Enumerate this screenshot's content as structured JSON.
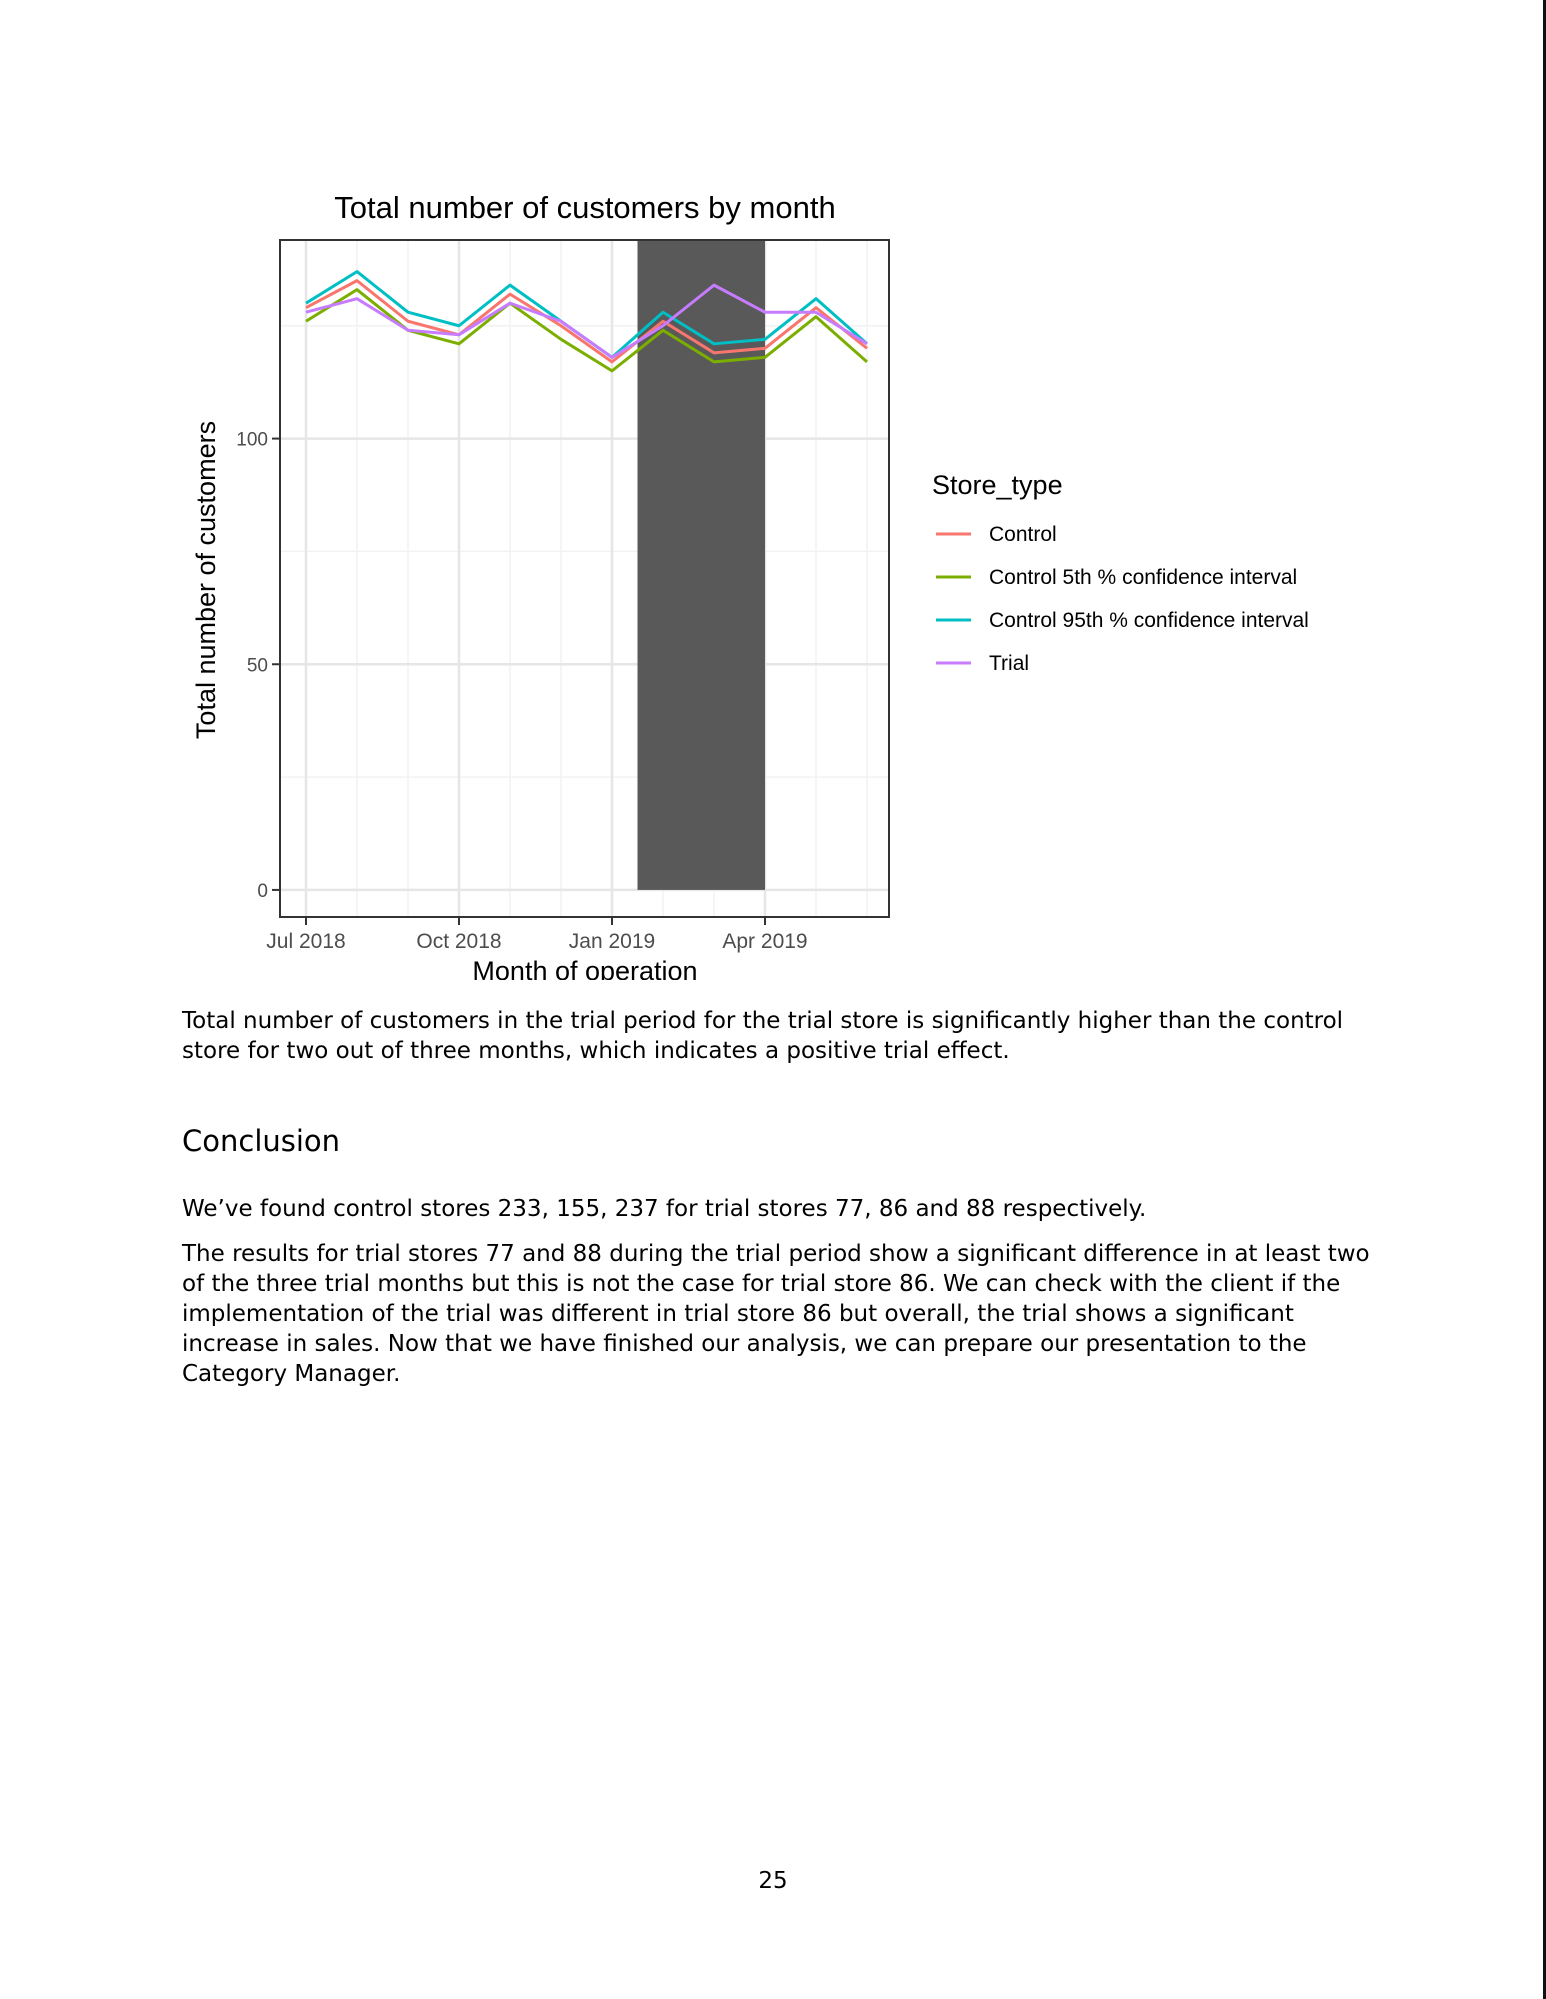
{
  "chart_data": {
    "type": "line",
    "title": "Total number of customers by month",
    "xlabel": "Month of operation",
    "ylabel": "Total number of customers",
    "x": [
      "2018-07",
      "2018-08",
      "2018-09",
      "2018-10",
      "2018-11",
      "2018-12",
      "2019-01",
      "2019-02",
      "2019-03",
      "2019-04",
      "2019-05",
      "2019-06"
    ],
    "x_tick_labels": [
      "Jul 2018",
      "Oct 2018",
      "Jan 2019",
      "Apr 2019"
    ],
    "x_tick_positions": [
      "2018-07",
      "2018-10",
      "2019-01",
      "2019-04"
    ],
    "y_ticks": [
      0,
      50,
      100
    ],
    "ylim": [
      -6,
      144
    ],
    "grid": true,
    "legend_title": "Store_type",
    "legend_position": "right",
    "highlight_band": {
      "from": "2019-02",
      "to": "2019-04",
      "color": "#595959"
    },
    "series": [
      {
        "name": "Control",
        "color": "#F8766D",
        "values": [
          129,
          135,
          126,
          123,
          132,
          125,
          117,
          126,
          119,
          120,
          129,
          120
        ]
      },
      {
        "name": "Control 5th % confidence interval",
        "color": "#7CAE00",
        "values": [
          126,
          133,
          124,
          121,
          130,
          122,
          115,
          124,
          117,
          118,
          127,
          117
        ]
      },
      {
        "name": "Control 95th % confidence interval",
        "color": "#00BFC4",
        "values": [
          130,
          137,
          128,
          125,
          134,
          126,
          118,
          128,
          121,
          122,
          131,
          121
        ]
      },
      {
        "name": "Trial",
        "color": "#C77CFF",
        "values": [
          128,
          131,
          124,
          123,
          130,
          126,
          118,
          125,
          134,
          128,
          128,
          121
        ]
      }
    ]
  },
  "body": {
    "chart_caption": "Total number of customers in the trial period for the trial store is significantly higher than the control store for two out of three months, which indicates a positive trial effect.",
    "conclusion_heading": "Conclusion",
    "conclusion_p1": "We’ve found control stores 233, 155, 237 for trial stores 77, 86 and 88 respectively.",
    "conclusion_p2": "The results for trial stores 77 and 88 during the trial period show a significant difference in at least two of the three trial months but this is not the case for trial store 86.  We can check with the client if the implementation of the trial was different in trial store 86 but overall, the trial shows a significant increase in sales. Now that we have finished our analysis, we can prepare our presentation to the Category Manager.",
    "page_number": "25"
  }
}
